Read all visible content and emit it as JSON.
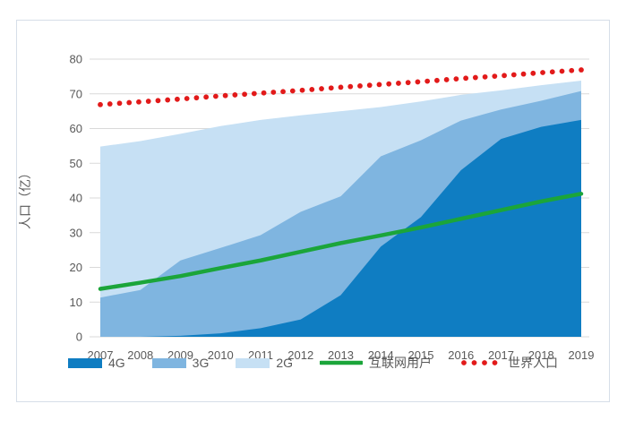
{
  "chart_data": {
    "type": "area",
    "title": "",
    "xlabel": "",
    "ylabel": "人口（亿）",
    "ylim": [
      0,
      80
    ],
    "y_ticks": [
      0,
      10,
      20,
      30,
      40,
      50,
      60,
      70,
      80
    ],
    "grid": "horizontal",
    "legend_position": "bottom",
    "x": [
      2007,
      2008,
      2009,
      2010,
      2011,
      2012,
      2013,
      2014,
      2015,
      2016,
      2017,
      2018,
      2019
    ],
    "note": "Stacked mobile-network coverage bands; area series values are cumulative population covered (top edge of each band), lines are overlays",
    "series": [
      {
        "name": "4G",
        "type": "area",
        "color": "#0f7dc2",
        "values": [
          0,
          0,
          0.3,
          1,
          2.5,
          5,
          12,
          26,
          34.5,
          48,
          57,
          60.5,
          62.5
        ]
      },
      {
        "name": "3G",
        "type": "area",
        "color": "#7fb5e0",
        "values": [
          11.3,
          13.5,
          22,
          25.6,
          29.3,
          36,
          40.5,
          52,
          56.6,
          62.3,
          65.5,
          68,
          70.8
        ]
      },
      {
        "name": "2G",
        "type": "area",
        "color": "#c6e0f4",
        "values": [
          54.8,
          56.4,
          58.5,
          60.7,
          62.5,
          63.8,
          65,
          66.2,
          67.8,
          69.7,
          71,
          72.5,
          73.8
        ]
      },
      {
        "name": "互联网用户",
        "type": "line",
        "color": "#1ba53a",
        "values": [
          13.8,
          15.6,
          17.5,
          19.8,
          22,
          24.5,
          27,
          29.2,
          31.5,
          34,
          36.5,
          39,
          41.2
        ]
      },
      {
        "name": "世界人口",
        "type": "dotted-line",
        "color": "#e21a1a",
        "values": [
          66.9,
          67.7,
          68.5,
          69.4,
          70.2,
          71,
          71.9,
          72.7,
          73.5,
          74.4,
          75.2,
          76.1,
          76.9
        ]
      }
    ]
  },
  "legend": {
    "items": [
      {
        "label": "4G",
        "swatch": "area",
        "color": "#0f7dc2"
      },
      {
        "label": "3G",
        "swatch": "area",
        "color": "#7fb5e0"
      },
      {
        "label": "2G",
        "swatch": "area",
        "color": "#c6e0f4"
      },
      {
        "label": "互联网用户",
        "swatch": "line",
        "color": "#1ba53a"
      },
      {
        "label": "世界人口",
        "swatch": "dots",
        "color": "#e21a1a"
      }
    ]
  },
  "style": {
    "grid_color": "#d9d9d9",
    "axis_text_color": "#595959",
    "frame_border_color": "#d6dee8",
    "background": "#ffffff"
  }
}
